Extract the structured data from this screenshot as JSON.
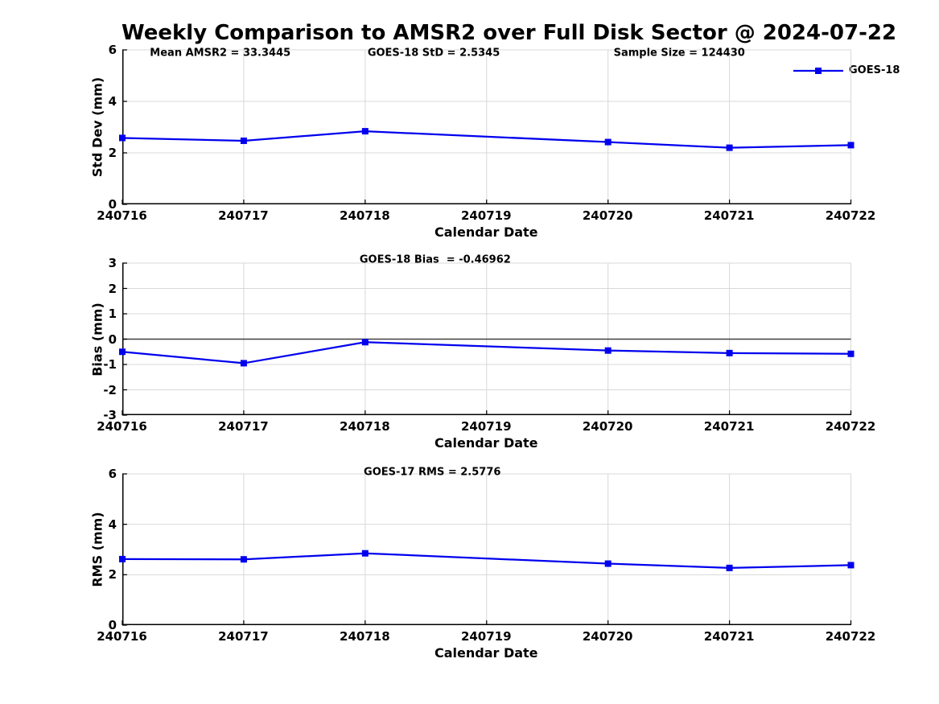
{
  "title": "Weekly Comparison to AMSR2 over Full Disk Sector @ 2024-07-22",
  "colors": {
    "series": "#0000EE",
    "grid": "#D8D8D8",
    "zero_line": "#404040",
    "axis": "#000000",
    "background": "#FFFFFF"
  },
  "chart_data": [
    {
      "id": "std-dev",
      "type": "line",
      "xlabel": "Calendar Date",
      "ylabel": "Std Dev (mm)",
      "ylim": [
        0,
        6
      ],
      "yticks": [
        0,
        2,
        4,
        6
      ],
      "x_tick_labels": [
        "240716",
        "240717",
        "240718",
        "240719",
        "240720",
        "240721",
        "240722"
      ],
      "x": [
        "240716",
        "240717",
        "240718",
        "240720",
        "240721",
        "240722"
      ],
      "x_offsets": [
        0,
        1,
        2,
        4,
        5,
        6
      ],
      "series": [
        {
          "name": "GOES-18",
          "values": [
            2.58,
            2.47,
            2.84,
            2.42,
            2.2,
            2.3
          ]
        }
      ],
      "legend": {
        "label": "GOES-18",
        "position": "northeast"
      },
      "grid": true,
      "zero_line": false,
      "annotations": [
        {
          "text": "Mean AMSR2 = 33.3445",
          "xfrac": 0.135
        },
        {
          "text": "GOES-18 StD = 2.5345",
          "xfrac": 0.428
        },
        {
          "text": "Sample Size = 124430",
          "xfrac": 0.765
        }
      ]
    },
    {
      "id": "bias",
      "type": "line",
      "xlabel": "Calendar Date",
      "ylabel": "Bias (mm)",
      "ylim": [
        -3,
        3
      ],
      "yticks": [
        -3,
        -2,
        -1,
        0,
        1,
        2,
        3
      ],
      "x_tick_labels": [
        "240716",
        "240717",
        "240718",
        "240719",
        "240720",
        "240721",
        "240722"
      ],
      "x": [
        "240716",
        "240717",
        "240718",
        "240720",
        "240721",
        "240722"
      ],
      "x_offsets": [
        0,
        1,
        2,
        4,
        5,
        6
      ],
      "series": [
        {
          "name": "GOES-18",
          "values": [
            -0.5,
            -0.95,
            -0.12,
            -0.45,
            -0.55,
            -0.58
          ]
        }
      ],
      "grid": true,
      "zero_line": true,
      "annotations": [
        {
          "text": "GOES-18 Bias  = -0.46962",
          "xfrac": 0.43
        }
      ]
    },
    {
      "id": "rms",
      "type": "line",
      "xlabel": "Calendar Date",
      "ylabel": "RMS (mm)",
      "ylim": [
        0,
        6
      ],
      "yticks": [
        0,
        2,
        4,
        6
      ],
      "x_tick_labels": [
        "240716",
        "240717",
        "240718",
        "240719",
        "240720",
        "240721",
        "240722"
      ],
      "x": [
        "240716",
        "240717",
        "240718",
        "240720",
        "240721",
        "240722"
      ],
      "x_offsets": [
        0,
        1,
        2,
        4,
        5,
        6
      ],
      "series": [
        {
          "name": "GOES-18",
          "values": [
            2.62,
            2.61,
            2.85,
            2.44,
            2.27,
            2.38
          ]
        }
      ],
      "grid": true,
      "zero_line": false,
      "annotations": [
        {
          "text": "GOES-17 RMS = 2.5776",
          "xfrac": 0.426
        }
      ]
    }
  ]
}
